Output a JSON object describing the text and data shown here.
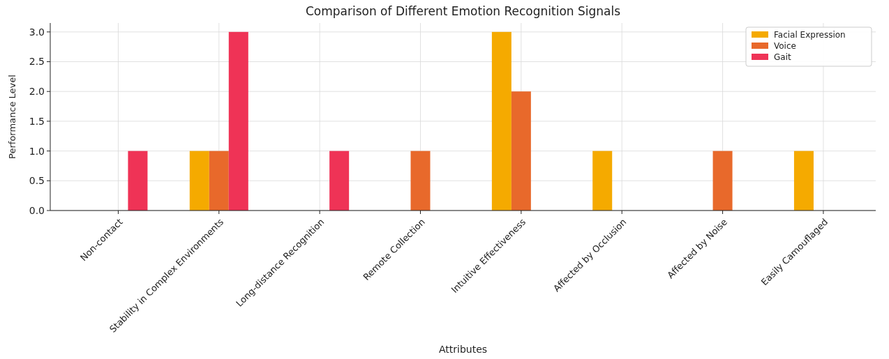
{
  "chart_data": {
    "type": "bar",
    "title": "Comparison of Different Emotion Recognition Signals",
    "xlabel": "Attributes",
    "ylabel": "Performance Level",
    "categories": [
      "Non-contact",
      "Stability in Complex Environments",
      "Long-distance Recognition",
      "Remote Collection",
      "Intuitive Effectiveness",
      "Affected by Occlusion",
      "Affected by Noise",
      "Easily Camouflaged"
    ],
    "series": [
      {
        "name": "Facial Expression",
        "color": "#f5aa00",
        "values": [
          0,
          1,
          0,
          0,
          3,
          1,
          0,
          1
        ]
      },
      {
        "name": "Voice",
        "color": "#e8692b",
        "values": [
          0,
          1,
          0,
          1,
          2,
          0,
          1,
          0
        ]
      },
      {
        "name": "Gait",
        "color": "#ef3356",
        "values": [
          1,
          3,
          1,
          0,
          0,
          0,
          0,
          0
        ]
      }
    ],
    "ylim": [
      0,
      3.15
    ],
    "yticks": [
      {
        "value": 0,
        "label": "0.0"
      },
      {
        "value": 0.5,
        "label": "0.5"
      },
      {
        "value": 1,
        "label": "1.0"
      },
      {
        "value": 1.5,
        "label": "1.5"
      },
      {
        "value": 2,
        "label": "2.0"
      },
      {
        "value": 2.5,
        "label": "2.5"
      },
      {
        "value": 3,
        "label": "3.0"
      }
    ],
    "grid": true,
    "legend": "top right"
  }
}
